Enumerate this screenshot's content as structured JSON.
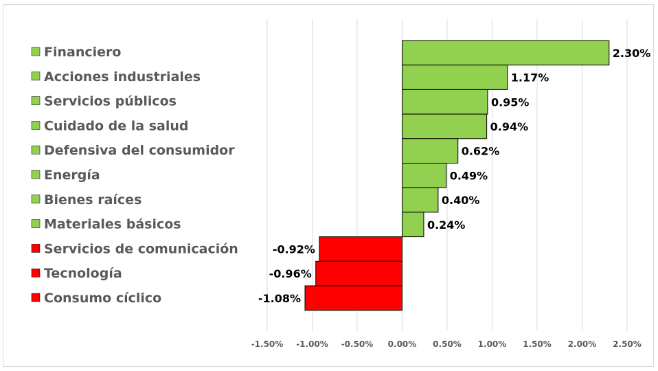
{
  "chart_data": {
    "type": "bar",
    "orientation": "horizontal",
    "categories": [
      "Financiero",
      "Acciones industriales",
      "Servicios públicos",
      "Cuidado de la salud",
      "Defensiva del consumidor",
      "Energía",
      "Bienes raíces",
      "Materiales básicos",
      "Servicios de comunicación",
      "Tecnología",
      "Consumo cíclico"
    ],
    "values": [
      2.3,
      1.17,
      0.95,
      0.94,
      0.62,
      0.49,
      0.4,
      0.24,
      -0.92,
      -0.96,
      -1.08
    ],
    "data_labels": [
      "2.30%",
      "1.17%",
      "0.95%",
      "0.94%",
      "0.62%",
      "0.49%",
      "0.40%",
      "0.24%",
      "-0.92%",
      "-0.96%",
      "-1.08%"
    ],
    "xlim": [
      -1.5,
      2.5
    ],
    "x_ticks": [
      -1.5,
      -1.0,
      -0.5,
      0.0,
      0.5,
      1.0,
      1.5,
      2.0,
      2.5
    ],
    "x_tick_labels": [
      "-1.50%",
      "-1.00%",
      "-0.50%",
      "0.00%",
      "0.50%",
      "1.00%",
      "1.50%",
      "2.00%",
      "2.50%"
    ],
    "title": "",
    "xlabel": "",
    "ylabel": "",
    "grid": "vertical",
    "legend_position": "left",
    "colors": {
      "positive": "#92d050",
      "negative": "#ff0000",
      "bar_border": "#000000",
      "grid": "#d9d9d9",
      "text": "#595959"
    }
  }
}
